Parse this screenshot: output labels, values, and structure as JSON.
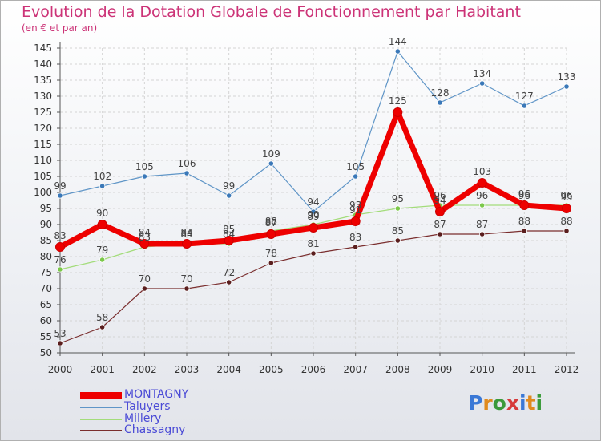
{
  "chart_data": {
    "type": "line",
    "title": "Evolution de la Dotation Globale de Fonctionnement par Habitant",
    "subtitle": "(en € et par an)",
    "xlabel": "",
    "ylabel": "",
    "x": [
      "2000",
      "2001",
      "2002",
      "2003",
      "2004",
      "2005",
      "2006",
      "2007",
      "2008",
      "2009",
      "2010",
      "2011",
      "2012"
    ],
    "ylim": [
      50,
      145
    ],
    "ytick_step": 5,
    "grid": true,
    "legend_position": "bottom-left",
    "series": [
      {
        "name": "Taluyers",
        "color": "#5f95c7",
        "marker": "#3a78b8",
        "width": 1.2,
        "values": [
          99,
          102,
          105,
          106,
          99,
          109,
          94,
          105,
          144,
          128,
          134,
          127,
          133
        ]
      },
      {
        "name": "Millery",
        "color": "#a3dc7a",
        "marker": "#7bc84a",
        "width": 1.2,
        "values": [
          76,
          79,
          83,
          84,
          84,
          88,
          90,
          93,
          95,
          96,
          96,
          96,
          96
        ]
      },
      {
        "name": "Chassagny",
        "color": "#7a2e2e",
        "marker": "#5a1e1e",
        "width": 1.2,
        "values": [
          53,
          58,
          70,
          70,
          72,
          78,
          81,
          83,
          85,
          87,
          87,
          88,
          88
        ]
      },
      {
        "name": "MONTAGNY",
        "color": "#ee0000",
        "marker": "#ee0000",
        "width": 7,
        "values": [
          83,
          90,
          84,
          84,
          85,
          87,
          89,
          91,
          125,
          94,
          103,
          96,
          95
        ]
      }
    ],
    "legend_order": [
      "MONTAGNY",
      "Taluyers",
      "Millery",
      "Chassagny"
    ]
  },
  "legend": {
    "items": [
      {
        "label": "MONTAGNY",
        "color": "#ee0000"
      },
      {
        "label": "Taluyers",
        "color": "#5f95c7"
      },
      {
        "label": "Millery",
        "color": "#a3dc7a"
      },
      {
        "label": "Chassagny",
        "color": "#7a2e2e"
      }
    ],
    "text_color": "#4b4bd6"
  },
  "logo": {
    "text": "Proxiti",
    "letter_colors": [
      "#3a78d6",
      "#e08a1e",
      "#3a9a3a",
      "#d63a3a",
      "#3a78d6",
      "#e08a1e",
      "#3a9a3a"
    ]
  }
}
